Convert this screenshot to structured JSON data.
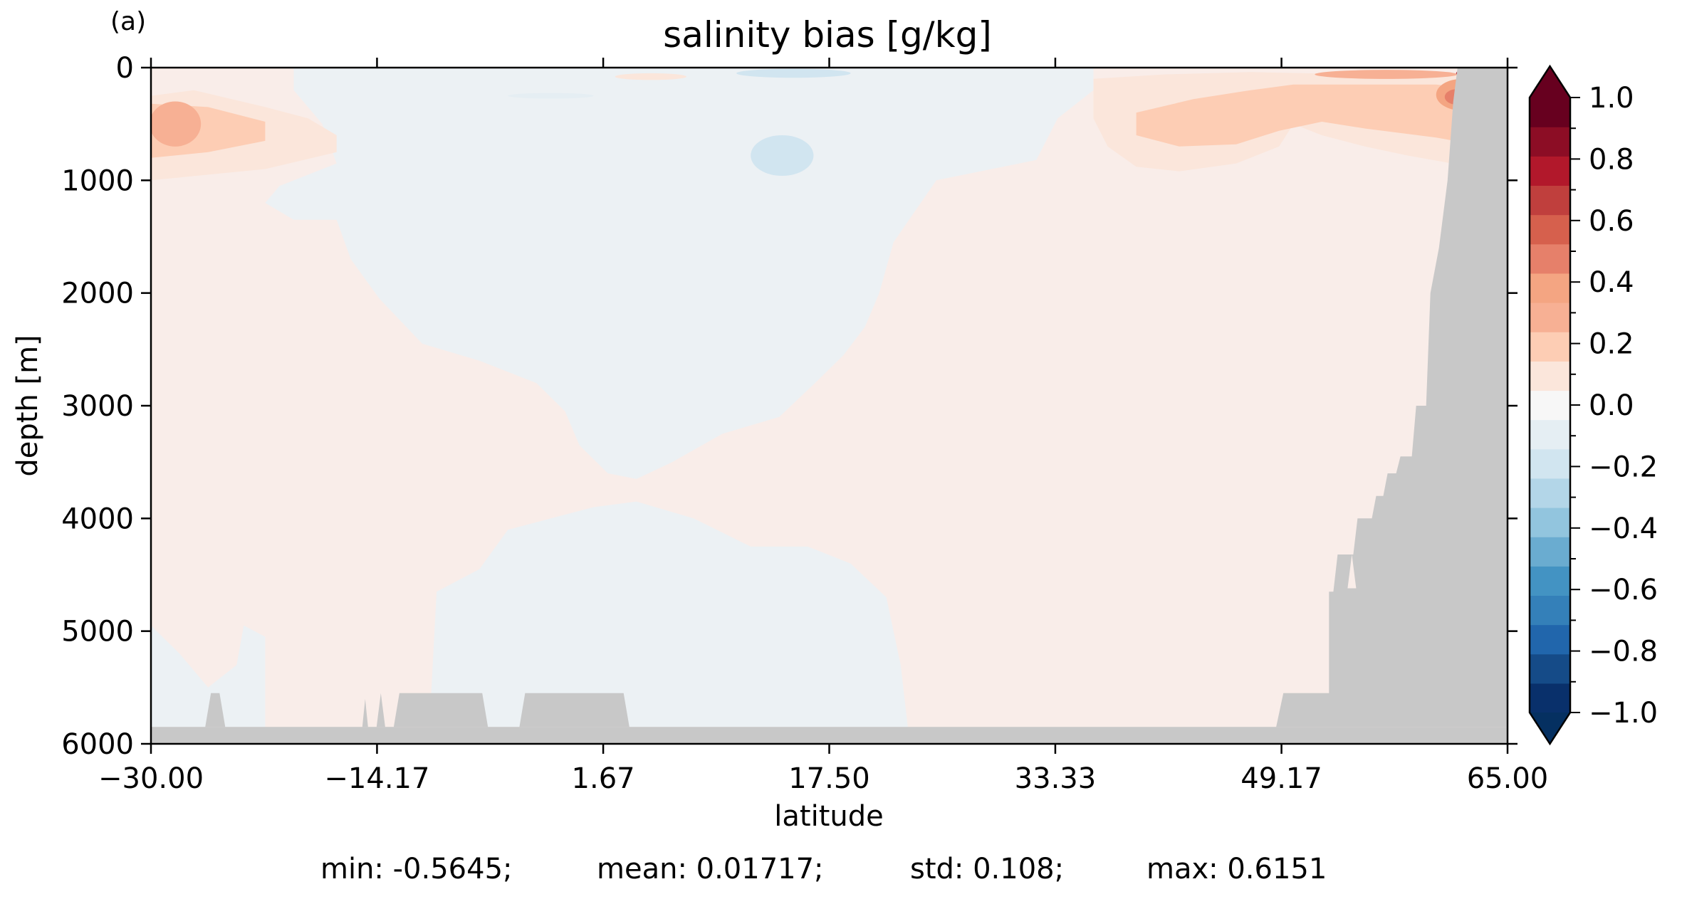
{
  "panel_label": "(a)",
  "stats": {
    "min": "min: -0.5645;",
    "mean": "mean: 0.01717;",
    "std": "std: 0.108;",
    "max": "max: 0.6151"
  },
  "chart_data": {
    "type": "heatmap",
    "title": "salinity bias [g/kg]",
    "xlabel": "latitude",
    "ylabel": "depth [m]",
    "xlim": [
      -30.0,
      65.0
    ],
    "ylim": [
      6000,
      0
    ],
    "y_inverted": true,
    "x_ticks": [
      -30.0,
      -14.17,
      1.67,
      17.5,
      33.33,
      49.17,
      65.0
    ],
    "x_tick_labels": [
      "−30.00",
      "−14.17",
      "1.67",
      "17.50",
      "33.33",
      "49.17",
      "65.00"
    ],
    "y_ticks": [
      0,
      1000,
      2000,
      3000,
      4000,
      5000,
      6000
    ],
    "y_tick_labels": [
      "0",
      "1000",
      "2000",
      "3000",
      "4000",
      "5000",
      "6000"
    ],
    "colorbar": {
      "colormap": "RdBu_r",
      "range": [
        -1.0,
        1.0
      ],
      "extend": "both",
      "level_step": 0.1,
      "ticks": [
        1.0,
        0.8,
        0.6,
        0.4,
        0.2,
        0.0,
        -0.2,
        -0.4,
        -0.6,
        -0.8,
        -1.0
      ],
      "tick_labels": [
        "1.0",
        "0.8",
        "0.6",
        "0.4",
        "0.2",
        "0.0",
        "−0.2",
        "−0.4",
        "−0.6",
        "−0.8",
        "−1.0"
      ],
      "colors": [
        "#09306b",
        "#154b88",
        "#2166ac",
        "#3480b9",
        "#4393c3",
        "#6aacd0",
        "#92c5de",
        "#b3d6e8",
        "#d1e5f0",
        "#e5eef3",
        "#f7f7f7",
        "#fbe6db",
        "#fdcdb4",
        "#f7b094",
        "#f4a582",
        "#e6806a",
        "#d6604d",
        "#c03f3d",
        "#b2182b",
        "#8c0d25",
        "#67001f"
      ],
      "min_extend_color": "#053061",
      "max_extend_color": "#67001f"
    },
    "land_mask_color": "#c8c8c8",
    "field": {
      "background_positive": "#f9ede9",
      "background_negative": "#ecf1f4",
      "regions": [
        {
          "sign": "negative",
          "desc": "central mid-depth water",
          "lat_range": [
            -22.0,
            36.0
          ],
          "depth_range": [
            0,
            3600
          ]
        },
        {
          "sign": "negative",
          "desc": "deep basin water",
          "lat_range": [
            -10.0,
            25.0
          ],
          "depth_range": [
            3900,
            5850
          ]
        },
        {
          "sign": "positive",
          "desc": "southern upper lobe",
          "lat_range": [
            -30.0,
            -22.0
          ],
          "depth_range": [
            200,
            1000
          ],
          "value": 0.35
        },
        {
          "sign": "positive",
          "desc": "northern upper layer",
          "lat_range": [
            37.0,
            63.0
          ],
          "depth_range": [
            0,
            950
          ],
          "value": 0.25
        },
        {
          "sign": "positive",
          "desc": "high-latitude surface maximum",
          "lat_range": [
            59.0,
            63.5
          ],
          "depth_range": [
            0,
            450
          ],
          "value": 0.6
        },
        {
          "sign": "negative",
          "desc": "small equatorial subsurface minimum",
          "lat_range": [
            12.0,
            16.0
          ],
          "depth_range": [
            600,
            950
          ],
          "value": -0.15
        }
      ]
    }
  }
}
